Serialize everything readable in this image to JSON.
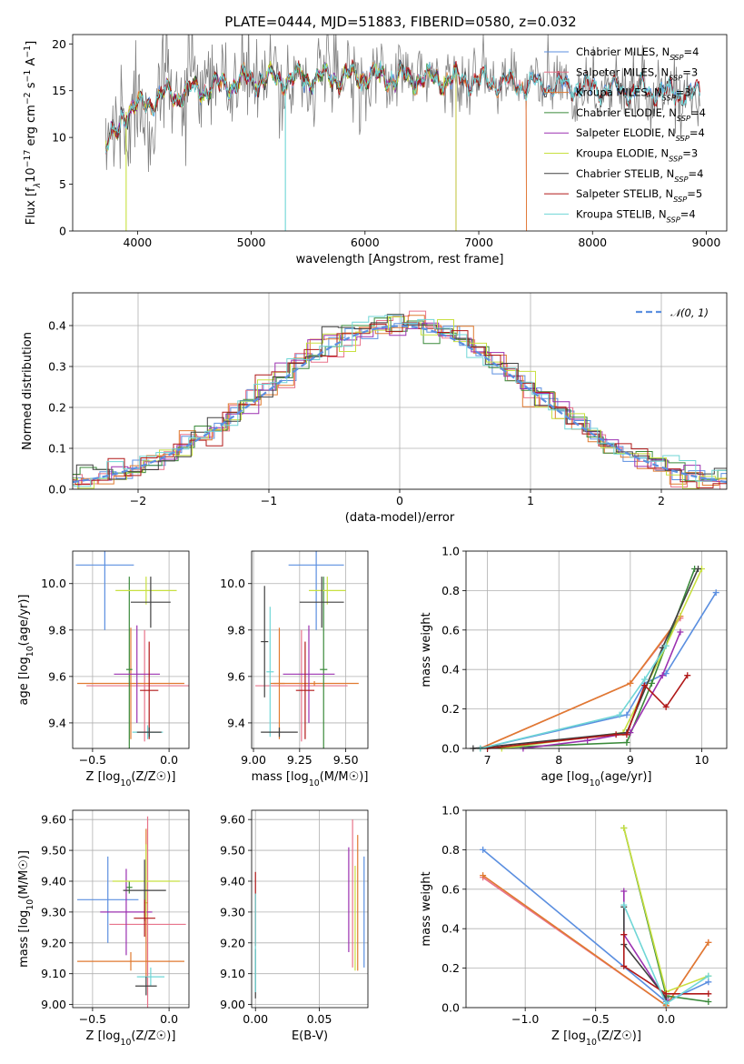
{
  "figure": {
    "title": "PLATE=0444, MJD=51883, FIBERID=0580, z=0.032"
  },
  "chart_data": [
    {
      "id": "spectrum",
      "type": "line",
      "xlabel": "wavelength [Angstrom, rest frame]",
      "ylabel": "Flux [f_λ10^-17 erg cm^-2 s^-1 A^-1]",
      "xlim": [
        3430,
        9180
      ],
      "ylim": [
        0,
        21
      ],
      "xticks": [
        4000,
        5000,
        6000,
        7000,
        8000,
        9000
      ],
      "yticks": [
        0,
        5,
        10,
        15,
        20
      ],
      "grid": false,
      "legend_position": "top-right",
      "observed_color": "#808080",
      "series": [
        {
          "name": "Chabrier MILES, N_SSP=4",
          "color": "#5b8fe0",
          "end": 8950,
          "drop": null
        },
        {
          "name": "Salpeter MILES, N_SSP=3",
          "color": "#e8738a",
          "end": 7420,
          "drop": null
        },
        {
          "name": "Kroupa MILES, N_SSP=3",
          "color": "#e07a30",
          "end": 7420,
          "drop": 6800
        },
        {
          "name": "Chabrier ELODIE, N_SSP=4",
          "color": "#3a8a3a",
          "end": 6800,
          "drop": null
        },
        {
          "name": "Salpeter ELODIE, N_SSP=4",
          "color": "#9b30b0",
          "end": 6800,
          "drop": null
        },
        {
          "name": "Kroupa ELODIE, N_SSP=3",
          "color": "#c8e040",
          "end": 6800,
          "drop": 3900
        },
        {
          "name": "Chabrier STELIB, N_SSP=4",
          "color": "#404040",
          "end": 8950,
          "drop": null
        },
        {
          "name": "Salpeter STELIB, N_SSP=5",
          "color": "#b01818",
          "end": 8950,
          "drop": null
        },
        {
          "name": "Kroupa STELIB, N_SSP=4",
          "color": "#6fd6d6",
          "end": 8950,
          "drop": 5300
        }
      ]
    },
    {
      "id": "residuals",
      "type": "histogram",
      "xlabel": "(data-model)/error",
      "ylabel": "Normed distribution",
      "xlim": [
        -2.5,
        2.5
      ],
      "ylim": [
        0,
        0.48
      ],
      "xticks": [
        -2,
        -1,
        0,
        1,
        2
      ],
      "yticks": [
        0.0,
        0.1,
        0.2,
        0.3,
        0.4
      ],
      "grid": true,
      "legend_position": "top-right",
      "reference": {
        "label": "𝒩(0, 1)",
        "mean": 0,
        "sigma": 1,
        "color": "#5b8fe0"
      },
      "bins": 40
    },
    {
      "id": "age_vs_Z",
      "type": "errorbar",
      "xlabel": "Z [log10(Z/Z☉)]",
      "ylabel": "age  [log10(age/yr)]",
      "xlim": [
        -0.63,
        0.13
      ],
      "ylim": [
        9.29,
        10.14
      ],
      "xticks": [
        -0.5,
        0.0
      ],
      "yticks": [
        9.4,
        9.6,
        9.8,
        10.0
      ],
      "grid": true,
      "points": [
        {
          "color": "#5b8fe0",
          "x": -0.42,
          "xerr": 0.19,
          "y": 10.08,
          "yerr": 0.28
        },
        {
          "color": "#e8738a",
          "x": -0.16,
          "xerr": 0.38,
          "y": 9.56,
          "yerr": 0.24
        },
        {
          "color": "#e07a30",
          "x": -0.25,
          "xerr": 0.35,
          "y": 9.57,
          "yerr": 0.24
        },
        {
          "color": "#3a8a3a",
          "x": -0.26,
          "xerr": 0.02,
          "y": 9.63,
          "yerr": 0.4
        },
        {
          "color": "#9b30b0",
          "x": -0.21,
          "xerr": 0.15,
          "y": 9.61,
          "yerr": 0.21
        },
        {
          "color": "#c8e040",
          "x": -0.15,
          "xerr": 0.2,
          "y": 9.97,
          "yerr": 0.06
        },
        {
          "color": "#404040",
          "x": -0.12,
          "xerr": 0.13,
          "y": 9.92,
          "yerr": 0.11
        },
        {
          "color": "#b01818",
          "x": -0.13,
          "xerr": 0.06,
          "y": 9.54,
          "yerr": 0.21
        },
        {
          "color": "#6fd6d6",
          "x": -0.14,
          "xerr": 0.1,
          "y": 9.36,
          "yerr": 0.03
        },
        {
          "color": "#404040",
          "x": -0.13,
          "xerr": 0.08,
          "y": 9.36,
          "yerr": 0.02
        }
      ]
    },
    {
      "id": "age_vs_mass",
      "type": "errorbar",
      "xlabel": "mass [log10(M/M☉)]",
      "ylabel": "",
      "xlim": [
        8.99,
        9.62
      ],
      "ylim": [
        9.29,
        10.14
      ],
      "xticks": [
        9.0,
        9.25,
        9.5
      ],
      "yticks": [
        9.4,
        9.6,
        9.8,
        10.0
      ],
      "grid": true,
      "points": [
        {
          "color": "#5b8fe0",
          "x": 9.34,
          "xerr": 0.15,
          "y": 10.08,
          "yerr": 0.28
        },
        {
          "color": "#e8738a",
          "x": 9.26,
          "xerr": 0.25,
          "y": 9.56,
          "yerr": 0.24
        },
        {
          "color": "#e07a30",
          "x": 9.14,
          "xerr": 0.03,
          "y": 9.57,
          "yerr": 0.24
        },
        {
          "color": "#e07a30",
          "x": 9.33,
          "xerr": 0.24,
          "y": 9.57,
          "yerr": 0.01
        },
        {
          "color": "#3a8a3a",
          "x": 9.38,
          "xerr": 0.02,
          "y": 9.63,
          "yerr": 0.4
        },
        {
          "color": "#9b30b0",
          "x": 9.3,
          "xerr": 0.14,
          "y": 9.61,
          "yerr": 0.21
        },
        {
          "color": "#c8e040",
          "x": 9.4,
          "xerr": 0.1,
          "y": 9.97,
          "yerr": 0.06
        },
        {
          "color": "#404040",
          "x": 9.37,
          "xerr": 0.12,
          "y": 9.92,
          "yerr": 0.11
        },
        {
          "color": "#404040",
          "x": 9.06,
          "xerr": 0.02,
          "y": 9.75,
          "yerr": 0.24
        },
        {
          "color": "#b01818",
          "x": 9.28,
          "xerr": 0.05,
          "y": 9.54,
          "yerr": 0.21
        },
        {
          "color": "#6fd6d6",
          "x": 9.09,
          "xerr": 0.02,
          "y": 9.62,
          "yerr": 0.28
        },
        {
          "color": "#404040",
          "x": 9.14,
          "xerr": 0.1,
          "y": 9.36,
          "yerr": 0.02
        }
      ]
    },
    {
      "id": "weight_vs_age",
      "type": "line",
      "xlabel": "age  [log10(age/yr)]",
      "ylabel": "mass weight",
      "xlim": [
        6.7,
        10.35
      ],
      "ylim": [
        0,
        1.0
      ],
      "xticks": [
        7,
        8,
        9,
        10
      ],
      "yticks": [
        0.0,
        0.2,
        0.4,
        0.6,
        0.8,
        1.0
      ],
      "grid": true,
      "series": [
        {
          "color": "#5b8fe0",
          "points": [
            [
              6.9,
              0.0
            ],
            [
              8.95,
              0.17
            ],
            [
              9.2,
              0.33
            ],
            [
              9.5,
              0.38
            ],
            [
              10.2,
              0.79
            ]
          ]
        },
        {
          "color": "#e8738a",
          "points": [
            [
              6.9,
              0.0
            ],
            [
              9.0,
              0.33
            ],
            [
              9.7,
              0.66
            ]
          ]
        },
        {
          "color": "#e07a30",
          "points": [
            [
              6.9,
              0.0
            ],
            [
              9.0,
              0.33
            ],
            [
              9.7,
              0.67
            ]
          ]
        },
        {
          "color": "#3a8a3a",
          "points": [
            [
              6.9,
              0.0
            ],
            [
              8.95,
              0.03
            ],
            [
              9.3,
              0.33
            ],
            [
              9.9,
              0.91
            ]
          ]
        },
        {
          "color": "#9b30b0",
          "points": [
            [
              7.5,
              0.0
            ],
            [
              8.4,
              0.04
            ],
            [
              9.0,
              0.08
            ],
            [
              9.45,
              0.37
            ],
            [
              9.7,
              0.59
            ]
          ]
        },
        {
          "color": "#c8e040",
          "points": [
            [
              7.2,
              0.0
            ],
            [
              8.9,
              0.08
            ],
            [
              9.5,
              0.52
            ],
            [
              10.0,
              0.91
            ]
          ]
        },
        {
          "color": "#404040",
          "points": [
            [
              6.8,
              0.0
            ],
            [
              8.95,
              0.08
            ],
            [
              9.45,
              0.51
            ],
            [
              9.95,
              0.91
            ]
          ]
        },
        {
          "color": "#b01818",
          "points": [
            [
              7.0,
              0.0
            ],
            [
              8.8,
              0.07
            ],
            [
              8.95,
              0.07
            ],
            [
              9.2,
              0.32
            ],
            [
              9.5,
              0.21
            ],
            [
              9.8,
              0.37
            ]
          ]
        },
        {
          "color": "#6fd6d6",
          "points": [
            [
              6.9,
              0.0
            ],
            [
              8.85,
              0.17
            ],
            [
              9.2,
              0.35
            ],
            [
              9.5,
              0.52
            ]
          ]
        }
      ]
    },
    {
      "id": "mass_vs_Z",
      "type": "errorbar",
      "xlabel": "Z [log10(Z/Z☉)]",
      "ylabel": "mass [log10(M/M☉)]",
      "xlim": [
        -0.63,
        0.13
      ],
      "ylim": [
        8.99,
        9.63
      ],
      "xticks": [
        -0.5,
        0.0
      ],
      "yticks": [
        9.0,
        9.1,
        9.2,
        9.3,
        9.4,
        9.5,
        9.6
      ],
      "grid": true,
      "points": [
        {
          "color": "#5b8fe0",
          "x": -0.4,
          "xerr": 0.2,
          "y": 9.34,
          "yerr": 0.14
        },
        {
          "color": "#e8738a",
          "x": -0.14,
          "xerr": 0.25,
          "y": 9.26,
          "yerr": 0.35
        },
        {
          "color": "#e07a30",
          "x": -0.25,
          "xerr": 0.35,
          "y": 9.14,
          "yerr": 0.03
        },
        {
          "color": "#e07a30",
          "x": -0.15,
          "xerr": 0.01,
          "y": 9.33,
          "yerr": 0.24
        },
        {
          "color": "#3a8a3a",
          "x": -0.26,
          "xerr": 0.02,
          "y": 9.38,
          "yerr": 0.02
        },
        {
          "color": "#9b30b0",
          "x": -0.28,
          "xerr": 0.17,
          "y": 9.3,
          "yerr": 0.14
        },
        {
          "color": "#c8e040",
          "x": -0.15,
          "xerr": 0.22,
          "y": 9.4,
          "yerr": 0.12
        },
        {
          "color": "#404040",
          "x": -0.16,
          "xerr": 0.14,
          "y": 9.37,
          "yerr": 0.1
        },
        {
          "color": "#b01818",
          "x": -0.16,
          "xerr": 0.07,
          "y": 9.28,
          "yerr": 0.06
        },
        {
          "color": "#6fd6d6",
          "x": -0.12,
          "xerr": 0.09,
          "y": 9.09,
          "yerr": 0.03
        },
        {
          "color": "#404040",
          "x": -0.15,
          "xerr": 0.07,
          "y": 9.06,
          "yerr": 0.03
        }
      ]
    },
    {
      "id": "mass_vs_ebv",
      "type": "errorbar",
      "xlabel": "E(B-V)",
      "ylabel": "",
      "xlim": [
        -0.003,
        0.088
      ],
      "ylim": [
        8.99,
        9.63
      ],
      "xticks": [
        0.0,
        0.05
      ],
      "yticks": [
        9.0,
        9.1,
        9.2,
        9.3,
        9.4,
        9.5,
        9.6
      ],
      "grid": true,
      "points": [
        {
          "color": "#b01818",
          "x": 0.0,
          "xerr": 0.0,
          "y": 9.31,
          "yerr": 0.12
        },
        {
          "color": "#404040",
          "x": 0.0,
          "xerr": 0.0,
          "y": 9.1,
          "yerr": 0.08
        },
        {
          "color": "#6fd6d6",
          "x": 0.0,
          "xerr": 0.0,
          "y": 9.2,
          "yerr": 0.16
        },
        {
          "color": "#9b30b0",
          "x": 0.073,
          "xerr": 0.0,
          "y": 9.34,
          "yerr": 0.17
        },
        {
          "color": "#e8738a",
          "x": 0.076,
          "xerr": 0.0,
          "y": 9.36,
          "yerr": 0.24
        },
        {
          "color": "#c8e040",
          "x": 0.078,
          "xerr": 0.0,
          "y": 9.28,
          "yerr": 0.17
        },
        {
          "color": "#e07a30",
          "x": 0.08,
          "xerr": 0.0,
          "y": 9.33,
          "yerr": 0.22
        },
        {
          "color": "#5b8fe0",
          "x": 0.085,
          "xerr": 0.0,
          "y": 9.3,
          "yerr": 0.18
        }
      ]
    },
    {
      "id": "weight_vs_Z",
      "type": "line",
      "xlabel": "Z [log10(Z/Z☉)]",
      "ylabel": "mass weight",
      "xlim": [
        -1.42,
        0.43
      ],
      "ylim": [
        0,
        1.0
      ],
      "xticks": [
        -1.0,
        -0.5,
        0.0
      ],
      "yticks": [
        0.0,
        0.2,
        0.4,
        0.6,
        0.8,
        1.0
      ],
      "grid": true,
      "series": [
        {
          "color": "#5b8fe0",
          "points": [
            [
              -1.3,
              0.8
            ],
            [
              0.0,
              0.03
            ],
            [
              0.3,
              0.13
            ]
          ]
        },
        {
          "color": "#e8738a",
          "points": [
            [
              -1.3,
              0.66
            ],
            [
              0.0,
              0.01
            ],
            [
              0.3,
              0.33
            ]
          ]
        },
        {
          "color": "#e07a30",
          "points": [
            [
              -1.3,
              0.67
            ],
            [
              0.0,
              0.01
            ],
            [
              0.3,
              0.33
            ]
          ]
        },
        {
          "color": "#3a8a3a",
          "points": [
            [
              -0.3,
              0.91
            ],
            [
              0.0,
              0.06
            ],
            [
              0.3,
              0.03
            ]
          ]
        },
        {
          "color": "#9b30b0",
          "points": [
            [
              -0.3,
              0.59
            ],
            [
              -0.3,
              0.37
            ],
            [
              0.0,
              0.04
            ]
          ]
        },
        {
          "color": "#c8e040",
          "points": [
            [
              -0.3,
              0.91
            ],
            [
              0.0,
              0.08
            ],
            [
              0.3,
              0.16
            ]
          ]
        },
        {
          "color": "#404040",
          "points": [
            [
              -0.3,
              0.51
            ],
            [
              -0.3,
              0.32
            ],
            [
              0.0,
              0.05
            ]
          ]
        },
        {
          "color": "#b01818",
          "points": [
            [
              -0.3,
              0.37
            ],
            [
              -0.3,
              0.21
            ],
            [
              0.0,
              0.07
            ],
            [
              0.3,
              0.07
            ]
          ]
        },
        {
          "color": "#6fd6d6",
          "points": [
            [
              -0.3,
              0.52
            ],
            [
              0.0,
              0.02
            ],
            [
              0.3,
              0.16
            ]
          ]
        }
      ]
    }
  ]
}
